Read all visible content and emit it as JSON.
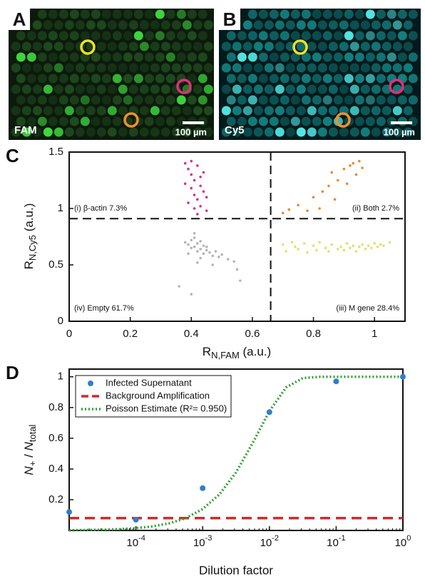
{
  "images": [
    {
      "label": "A",
      "channel": "FAM",
      "scale_bar": "100 µm"
    },
    {
      "label": "B",
      "channel": "Cy5",
      "scale_bar": "100 µm"
    }
  ],
  "chart_data": [
    {
      "type": "scatter",
      "panel": "C",
      "x_label": [
        "R",
        "N,FAM",
        " (a.u.)"
      ],
      "y_label": [
        "R",
        "N,Cy5",
        " (a.u.)"
      ],
      "xlim": [
        0,
        1.1
      ],
      "ylim": [
        0,
        1.5
      ],
      "xticks": [
        0,
        0.2,
        0.4,
        0.6,
        0.8,
        1
      ],
      "yticks": [
        0,
        0.5,
        1,
        1.5
      ],
      "thresholds": {
        "x": 0.66,
        "y": 0.91
      },
      "annotations": [
        "(i) β-actin 7.3%",
        "(ii) Both 2.7%",
        "(iii) M gene 28.4%",
        "(iv) Empty 61.7%"
      ],
      "series": [
        {
          "color": "#d63384",
          "x": [
            0.38,
            0.39,
            0.4,
            0.41,
            0.42,
            0.43,
            0.44,
            0.45,
            0.39,
            0.41,
            0.43,
            0.4,
            0.42,
            0.44,
            0.38,
            0.41,
            0.43,
            0.45,
            0.4,
            0.42
          ],
          "values": [
            1.4,
            1.35,
            1.3,
            1.25,
            1.38,
            1.2,
            1.15,
            1.1,
            1.05,
            1.0,
            1.28,
            1.18,
            1.08,
            1.32,
            1.22,
            1.12,
            1.02,
            0.98,
            1.42,
            0.95
          ]
        },
        {
          "color": "#e58a2e",
          "x": [
            0.7,
            0.72,
            0.75,
            0.78,
            0.8,
            0.83,
            0.85,
            0.86,
            0.88,
            0.9,
            0.92,
            0.93,
            0.94,
            0.95,
            0.96,
            0.87,
            0.82,
            0.91
          ],
          "values": [
            0.96,
            0.99,
            1.03,
            0.98,
            1.1,
            1.15,
            1.2,
            1.32,
            1.25,
            1.35,
            1.38,
            1.4,
            1.3,
            1.42,
            1.36,
            1.08,
            1.0,
            1.22
          ]
        },
        {
          "color": "#b5b5b5",
          "x": [
            0.38,
            0.39,
            0.4,
            0.4,
            0.41,
            0.41,
            0.42,
            0.42,
            0.43,
            0.43,
            0.44,
            0.44,
            0.45,
            0.46,
            0.47,
            0.48,
            0.49,
            0.5,
            0.52,
            0.54,
            0.56,
            0.45,
            0.41,
            0.43,
            0.39,
            0.47,
            0.36,
            0.4,
            0.55,
            0.42
          ],
          "values": [
            0.7,
            0.68,
            0.72,
            0.65,
            0.74,
            0.66,
            0.69,
            0.62,
            0.71,
            0.64,
            0.67,
            0.6,
            0.63,
            0.61,
            0.58,
            0.62,
            0.57,
            0.59,
            0.55,
            0.53,
            0.36,
            0.66,
            0.78,
            0.56,
            0.6,
            0.5,
            0.31,
            0.24,
            0.46,
            0.52
          ]
        },
        {
          "color": "#e6df6a",
          "x": [
            0.7,
            0.71,
            0.73,
            0.74,
            0.75,
            0.77,
            0.78,
            0.8,
            0.81,
            0.82,
            0.84,
            0.85,
            0.86,
            0.88,
            0.89,
            0.9,
            0.91,
            0.92,
            0.93,
            0.94,
            0.95,
            0.96,
            0.97,
            0.98,
            0.99,
            1.0,
            1.01,
            1.02,
            1.03,
            1.05
          ],
          "values": [
            0.68,
            0.62,
            0.7,
            0.66,
            0.64,
            0.69,
            0.61,
            0.67,
            0.63,
            0.7,
            0.65,
            0.62,
            0.68,
            0.64,
            0.66,
            0.63,
            0.69,
            0.65,
            0.67,
            0.62,
            0.66,
            0.68,
            0.64,
            0.67,
            0.65,
            0.69,
            0.66,
            0.68,
            0.67,
            0.7
          ]
        }
      ]
    },
    {
      "type": "line",
      "panel": "D",
      "xscale": "log",
      "x_label": "Dilution factor",
      "y_label": [
        "N",
        "+",
        " / ",
        "N",
        "total"
      ],
      "xlim": [
        1e-05,
        1
      ],
      "ylim": [
        0,
        1.05
      ],
      "xticks": [
        {
          "value": 0.0001,
          "label": "10",
          "exponent": "-4"
        },
        {
          "value": 0.001,
          "label": "10",
          "exponent": "-3"
        },
        {
          "value": 0.01,
          "label": "10",
          "exponent": "-2"
        },
        {
          "value": 0.1,
          "label": "10",
          "exponent": "-1"
        },
        {
          "value": 1,
          "label": "10",
          "exponent": "0"
        }
      ],
      "yticks": [
        0.2,
        0.4,
        0.6,
        0.8,
        1
      ],
      "series": [
        {
          "name": "Infected Supernatant",
          "color": "#2f7fc9",
          "style": "points",
          "x": [
            1e-05,
            0.0001,
            0.001,
            0.01,
            0.1,
            1
          ],
          "values": [
            0.12,
            0.07,
            0.275,
            0.77,
            0.97,
            1.0
          ]
        },
        {
          "name": "Background Amplification",
          "color": "#d62728",
          "style": "dashed",
          "x": [
            1e-05,
            1
          ],
          "values": [
            0.08,
            0.08
          ]
        },
        {
          "name": "Poisson Estimate (R²= 0.950)",
          "color": "#2ca02c",
          "style": "dotted",
          "x": [
            1e-05,
            1.778e-05,
            3.162e-05,
            5.623e-05,
            0.0001,
            0.0001778,
            0.0003162,
            0.0005623,
            0.001,
            0.001778,
            0.003162,
            0.005623,
            0.01,
            0.01778,
            0.03162,
            0.05623,
            0.1,
            0.1778,
            0.3162,
            0.5623,
            1
          ],
          "values": [
            0.0015,
            0.0027,
            0.0047,
            0.0084,
            0.0149,
            0.0263,
            0.0463,
            0.0809,
            0.1393,
            0.234,
            0.3777,
            0.5698,
            0.7769,
            0.9305,
            0.9913,
            0.9998,
            1,
            1,
            1,
            1,
            1
          ]
        }
      ]
    }
  ]
}
